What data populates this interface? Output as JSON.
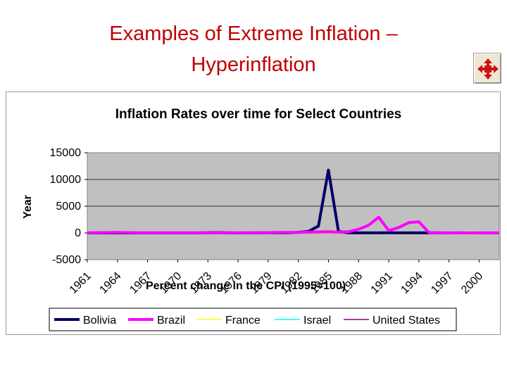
{
  "slide": {
    "title_line1": "Examples of Extreme Inflation –",
    "title_line2": "Hyperinflation"
  },
  "nav": {
    "icon": "expand-arrows-icon"
  },
  "colors": {
    "title": "#c00000",
    "plot_bg": "#c0c0c0",
    "bolivia": "#000066",
    "brazil": "#ff00ff",
    "france": "#ffff00",
    "israel": "#00ffff",
    "united_states": "#800080"
  },
  "chart_data": {
    "type": "line",
    "title": "Inflation Rates over time for Select Countries",
    "xlabel": "Percent change in the CPI (1995=100)",
    "ylabel": "Year",
    "ylim": [
      -5000,
      15000
    ],
    "yticks": [
      -5000,
      0,
      5000,
      10000,
      15000
    ],
    "x": [
      1961,
      1962,
      1963,
      1964,
      1965,
      1966,
      1967,
      1968,
      1969,
      1970,
      1971,
      1972,
      1973,
      1974,
      1975,
      1976,
      1977,
      1978,
      1979,
      1980,
      1981,
      1982,
      1983,
      1984,
      1985,
      1986,
      1987,
      1988,
      1989,
      1990,
      1991,
      1992,
      1993,
      1994,
      1995,
      1996,
      1997,
      1998,
      1999,
      2000,
      2001,
      2002
    ],
    "xticks": [
      1961,
      1964,
      1967,
      1970,
      1973,
      1976,
      1979,
      1982,
      1985,
      1988,
      1991,
      1994,
      1997,
      2000
    ],
    "grid": true,
    "legend_position": "bottom",
    "series": [
      {
        "name": "Bolivia",
        "key": "bolivia",
        "values": [
          5,
          5,
          5,
          5,
          5,
          5,
          5,
          5,
          5,
          5,
          5,
          5,
          30,
          60,
          10,
          5,
          10,
          10,
          20,
          50,
          30,
          120,
          275,
          1280,
          11750,
          280,
          15,
          16,
          15,
          17,
          21,
          12,
          8,
          8,
          10,
          12,
          4,
          8,
          2,
          5,
          2,
          1
        ]
      },
      {
        "name": "Brazil",
        "key": "brazil",
        "values": [
          30,
          50,
          70,
          90,
          60,
          40,
          30,
          20,
          20,
          20,
          20,
          20,
          15,
          30,
          30,
          40,
          40,
          40,
          50,
          90,
          100,
          100,
          140,
          200,
          230,
          145,
          230,
          680,
          1430,
          2950,
          440,
          1010,
          1930,
          2080,
          65,
          16,
          7,
          3,
          5,
          7,
          7,
          8
        ]
      },
      {
        "name": "France",
        "key": "france",
        "values": [
          3,
          4,
          5,
          3,
          3,
          3,
          3,
          5,
          6,
          6,
          6,
          6,
          7,
          14,
          12,
          10,
          9,
          9,
          11,
          14,
          13,
          12,
          10,
          8,
          6,
          3,
          3,
          3,
          4,
          3,
          3,
          2,
          2,
          2,
          2,
          2,
          1,
          1,
          1,
          2,
          2,
          2
        ]
      },
      {
        "name": "Israel",
        "key": "israel",
        "values": [
          7,
          9,
          7,
          5,
          8,
          8,
          2,
          2,
          3,
          6,
          12,
          13,
          20,
          40,
          39,
          31,
          35,
          50,
          78,
          131,
          117,
          120,
          146,
          374,
          305,
          48,
          20,
          16,
          20,
          17,
          19,
          12,
          11,
          12,
          10,
          11,
          9,
          5,
          5,
          1,
          1,
          6
        ]
      },
      {
        "name": "United States",
        "key": "united_states",
        "values": [
          1,
          1,
          1,
          1,
          2,
          3,
          3,
          4,
          5,
          6,
          4,
          3,
          6,
          11,
          9,
          6,
          7,
          8,
          11,
          14,
          10,
          6,
          3,
          4,
          4,
          2,
          4,
          4,
          5,
          5,
          4,
          3,
          3,
          3,
          3,
          3,
          2,
          2,
          2,
          3,
          3,
          2
        ]
      }
    ]
  }
}
